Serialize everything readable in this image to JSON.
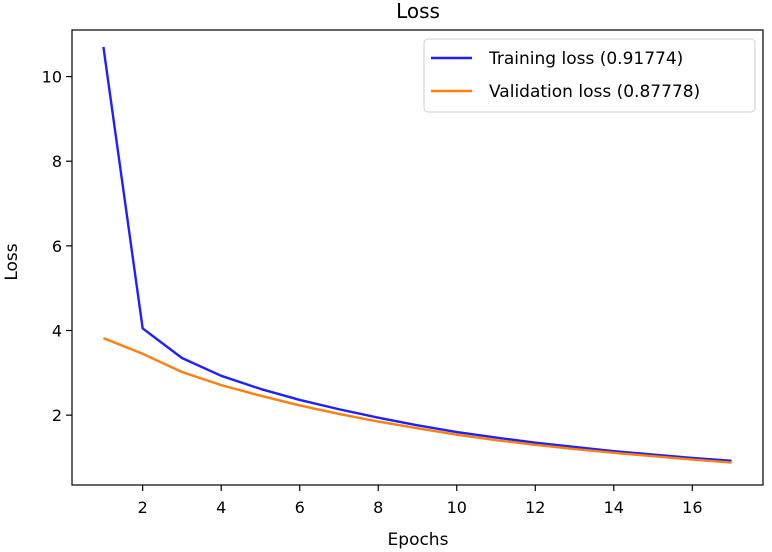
{
  "chart_data": {
    "type": "line",
    "title": "Loss",
    "xlabel": "Epochs",
    "ylabel": "Loss",
    "xlim": [
      0.2,
      17.8
    ],
    "ylim": [
      0.35,
      11.1
    ],
    "xticks": [
      2,
      4,
      6,
      8,
      10,
      12,
      14,
      16
    ],
    "yticks": [
      2,
      4,
      6,
      8,
      10
    ],
    "grid": false,
    "legend_position": "top-right",
    "x": [
      1,
      2,
      3,
      4,
      5,
      6,
      7,
      8,
      9,
      10,
      11,
      12,
      13,
      14,
      15,
      16,
      17
    ],
    "series": [
      {
        "name": "Training loss (0.91774)",
        "color": "#1f1fff",
        "values": [
          10.7,
          4.05,
          3.35,
          2.93,
          2.62,
          2.36,
          2.14,
          1.94,
          1.76,
          1.6,
          1.47,
          1.35,
          1.25,
          1.15,
          1.07,
          0.99,
          0.92
        ]
      },
      {
        "name": "Validation loss (0.87778)",
        "color": "#ff7f0e",
        "values": [
          3.82,
          3.45,
          3.02,
          2.71,
          2.46,
          2.23,
          2.03,
          1.85,
          1.69,
          1.54,
          1.41,
          1.3,
          1.2,
          1.11,
          1.03,
          0.95,
          0.88
        ]
      }
    ]
  }
}
